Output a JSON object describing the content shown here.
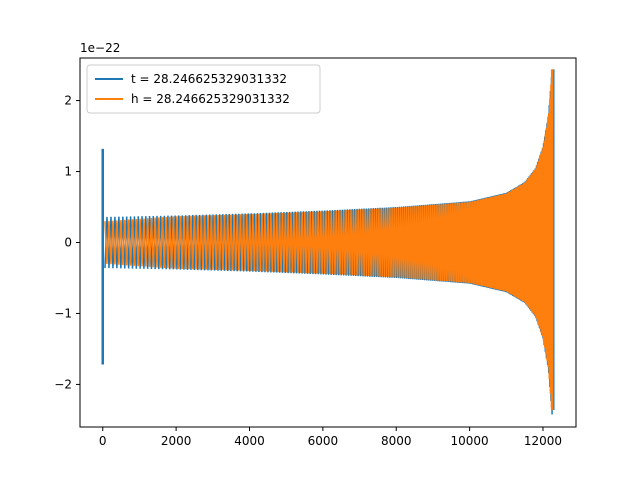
{
  "chart_data": {
    "type": "line",
    "title": "",
    "xlabel": "",
    "ylabel": "",
    "y_offset_label": "1e−22",
    "xlim": [
      -620,
      12900
    ],
    "ylim": [
      -2.6,
      2.6
    ],
    "x_ticks": [
      0,
      2000,
      4000,
      6000,
      8000,
      10000,
      12000
    ],
    "x_tick_labels": [
      "0",
      "2000",
      "4000",
      "6000",
      "8000",
      "10000",
      "12000"
    ],
    "y_ticks": [
      -2,
      -1,
      0,
      1,
      2
    ],
    "y_tick_labels": [
      "−2",
      "−1",
      "0",
      "1",
      "2"
    ],
    "grid": false,
    "legend_position": "upper-left",
    "series": [
      {
        "name": "t = 28.246625329031332",
        "color": "#1f77b4",
        "x_start": 0,
        "x_end": 12300,
        "start_spike": {
          "x": 0,
          "max": 1.32,
          "min": -1.72
        },
        "end_spike": {
          "x": 12280,
          "max": 2.44,
          "min": -2.36
        },
        "envelope": [
          [
            60,
            0.36
          ],
          [
            2000,
            0.38
          ],
          [
            4000,
            0.41
          ],
          [
            6000,
            0.45
          ],
          [
            8000,
            0.5
          ],
          [
            10000,
            0.58
          ],
          [
            11000,
            0.7
          ],
          [
            11500,
            0.85
          ],
          [
            11800,
            1.05
          ],
          [
            12000,
            1.35
          ],
          [
            12150,
            1.8
          ],
          [
            12250,
            2.44
          ]
        ]
      },
      {
        "name": "h = 28.246625329031332",
        "color": "#ff7f0e",
        "x_start": 0,
        "x_end": 12300,
        "end_spike": {
          "x": 12250,
          "max": 2.44,
          "min": -2.36
        },
        "envelope": [
          [
            60,
            0.3
          ],
          [
            2000,
            0.37
          ],
          [
            4000,
            0.4
          ],
          [
            6000,
            0.44
          ],
          [
            8000,
            0.49
          ],
          [
            10000,
            0.57
          ],
          [
            11000,
            0.69
          ],
          [
            11500,
            0.84
          ],
          [
            11800,
            1.04
          ],
          [
            12000,
            1.34
          ],
          [
            12150,
            1.78
          ],
          [
            12250,
            2.44
          ]
        ]
      }
    ]
  }
}
